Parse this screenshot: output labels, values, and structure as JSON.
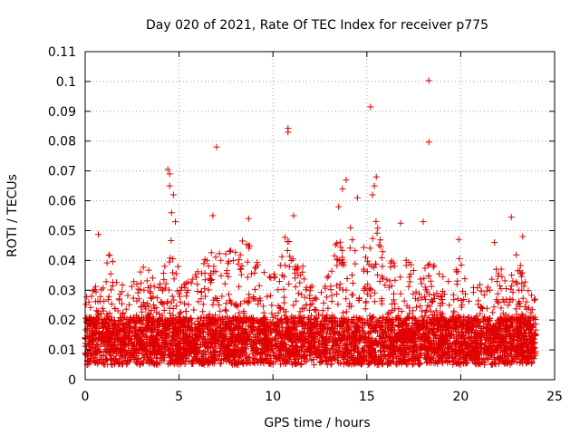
{
  "chart_data": {
    "type": "scatter",
    "title": "Day 020 of 2021, Rate Of TEC Index for receiver p775",
    "xlabel": "GPS time / hours",
    "ylabel": "ROTI / TECUs",
    "xlim": [
      0,
      25
    ],
    "ylim": [
      0,
      0.11
    ],
    "xticks": [
      "0",
      "5",
      "10",
      "15",
      "20",
      "25"
    ],
    "yticks": [
      "0",
      "0.01",
      "0.02",
      "0.03",
      "0.04",
      "0.05",
      "0.06",
      "0.07",
      "0.08",
      "0.09",
      "0.1",
      "0.11"
    ],
    "grid": true,
    "marker": "+",
    "color": "#e00000",
    "notable_points": [
      {
        "x": 18.3,
        "y": 0.1003
      },
      {
        "x": 15.2,
        "y": 0.0915
      },
      {
        "x": 10.8,
        "y": 0.0843
      },
      {
        "x": 10.8,
        "y": 0.083
      },
      {
        "x": 18.3,
        "y": 0.0797
      },
      {
        "x": 7.0,
        "y": 0.078
      },
      {
        "x": 4.4,
        "y": 0.0705
      },
      {
        "x": 4.5,
        "y": 0.069
      },
      {
        "x": 4.5,
        "y": 0.065
      },
      {
        "x": 4.7,
        "y": 0.062
      },
      {
        "x": 13.9,
        "y": 0.067
      },
      {
        "x": 15.5,
        "y": 0.068
      },
      {
        "x": 15.4,
        "y": 0.065
      },
      {
        "x": 15.3,
        "y": 0.062
      },
      {
        "x": 14.5,
        "y": 0.061
      },
      {
        "x": 13.7,
        "y": 0.064
      },
      {
        "x": 4.6,
        "y": 0.056
      },
      {
        "x": 4.8,
        "y": 0.053
      },
      {
        "x": 6.8,
        "y": 0.055
      },
      {
        "x": 8.7,
        "y": 0.054
      },
      {
        "x": 11.1,
        "y": 0.055
      },
      {
        "x": 13.5,
        "y": 0.058
      },
      {
        "x": 16.8,
        "y": 0.0525
      },
      {
        "x": 18.0,
        "y": 0.053
      },
      {
        "x": 22.7,
        "y": 0.0545
      },
      {
        "x": 23.3,
        "y": 0.048
      },
      {
        "x": 0.7,
        "y": 0.0487
      },
      {
        "x": 21.8,
        "y": 0.046
      },
      {
        "x": 19.9,
        "y": 0.047
      }
    ],
    "activity_profile": [
      [
        0.0,
        0.024
      ],
      [
        0.5,
        0.028
      ],
      [
        1.0,
        0.03
      ],
      [
        1.3,
        0.042
      ],
      [
        1.8,
        0.03
      ],
      [
        2.3,
        0.028
      ],
      [
        2.8,
        0.032
      ],
      [
        3.2,
        0.04
      ],
      [
        3.6,
        0.03
      ],
      [
        4.2,
        0.036
      ],
      [
        4.6,
        0.045
      ],
      [
        5.0,
        0.035
      ],
      [
        5.6,
        0.03
      ],
      [
        6.0,
        0.034
      ],
      [
        6.5,
        0.04
      ],
      [
        7.0,
        0.042
      ],
      [
        7.5,
        0.044
      ],
      [
        8.0,
        0.04
      ],
      [
        8.6,
        0.046
      ],
      [
        9.2,
        0.038
      ],
      [
        9.8,
        0.036
      ],
      [
        10.4,
        0.04
      ],
      [
        10.9,
        0.048
      ],
      [
        11.4,
        0.036
      ],
      [
        12.0,
        0.03
      ],
      [
        12.5,
        0.028
      ],
      [
        13.0,
        0.034
      ],
      [
        13.6,
        0.048
      ],
      [
        14.0,
        0.052
      ],
      [
        14.5,
        0.044
      ],
      [
        15.0,
        0.04
      ],
      [
        15.5,
        0.05
      ],
      [
        16.0,
        0.04
      ],
      [
        16.5,
        0.036
      ],
      [
        17.0,
        0.038
      ],
      [
        17.5,
        0.034
      ],
      [
        18.0,
        0.036
      ],
      [
        18.5,
        0.04
      ],
      [
        19.0,
        0.032
      ],
      [
        19.5,
        0.03
      ],
      [
        20.0,
        0.038
      ],
      [
        20.5,
        0.028
      ],
      [
        21.0,
        0.03
      ],
      [
        21.5,
        0.032
      ],
      [
        22.0,
        0.036
      ],
      [
        22.5,
        0.03
      ],
      [
        23.0,
        0.04
      ],
      [
        23.5,
        0.028
      ],
      [
        24.0,
        0.024
      ]
    ],
    "sample_count": 5200
  }
}
